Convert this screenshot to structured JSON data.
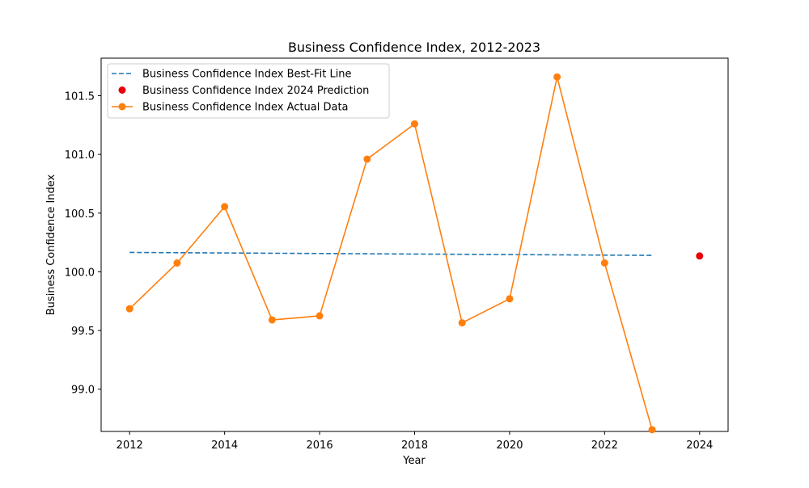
{
  "chart_data": {
    "type": "line",
    "title": "Business Confidence Index, 2012-2023",
    "xlabel": "Year",
    "ylabel": "Business Confidence Index",
    "xlim": [
      2011.4,
      2024.6
    ],
    "ylim": [
      98.64,
      101.82
    ],
    "x_ticks": [
      2012,
      2014,
      2016,
      2018,
      2020,
      2022,
      2024
    ],
    "x_tick_labels": [
      "2012",
      "2014",
      "2016",
      "2018",
      "2020",
      "2022",
      "2024"
    ],
    "y_ticks": [
      99.0,
      99.5,
      100.0,
      100.5,
      101.0,
      101.5
    ],
    "y_tick_labels": [
      "99.0",
      "99.5",
      "100.0",
      "100.5",
      "101.0",
      "101.5"
    ],
    "grid": false,
    "legend_position": "top-left",
    "series": [
      {
        "name": "Business Confidence Index Best-Fit Line",
        "kind": "dashed-line",
        "color": "#1f77b4",
        "x": [
          2012,
          2023
        ],
        "y": [
          100.165,
          100.14
        ]
      },
      {
        "name": "Business Confidence Index 2024 Prediction",
        "kind": "scatter",
        "color": "#e8000b",
        "x": [
          2024
        ],
        "y": [
          100.135
        ]
      },
      {
        "name": "Business Confidence Index Actual Data",
        "kind": "line-marker",
        "color": "#ff7f0e",
        "x": [
          2012,
          2013,
          2014,
          2015,
          2016,
          2017,
          2018,
          2019,
          2020,
          2021,
          2022,
          2023
        ],
        "y": [
          99.685,
          100.075,
          100.555,
          99.59,
          99.625,
          100.96,
          101.26,
          99.565,
          99.77,
          101.66,
          100.075,
          98.655
        ]
      }
    ]
  }
}
